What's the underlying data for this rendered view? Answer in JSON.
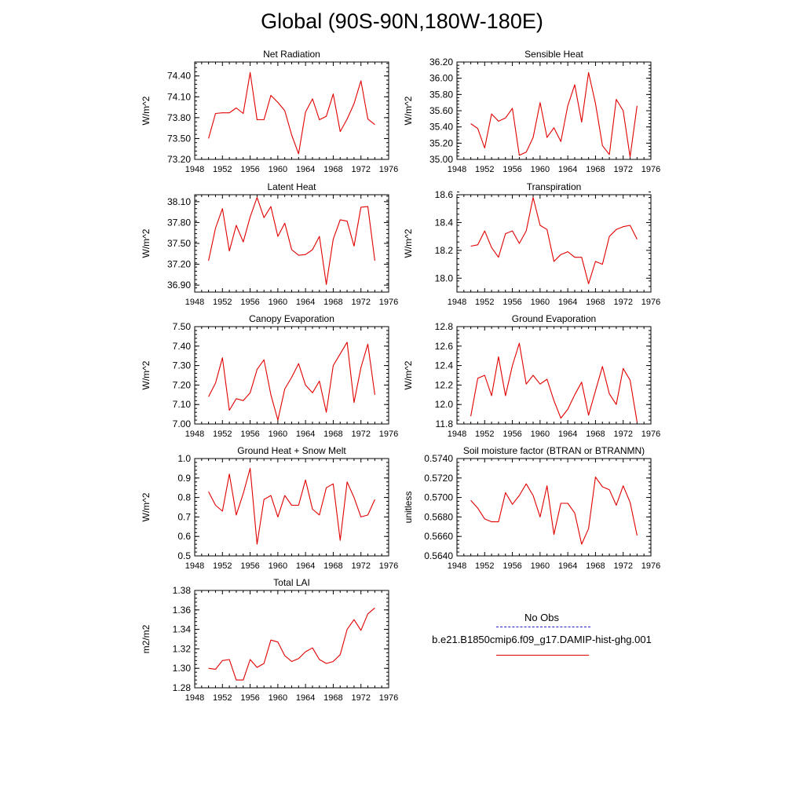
{
  "page_title": "Global (90S-90N,180W-180E)",
  "legend": {
    "items": [
      {
        "label": "No Obs",
        "color": "#1f1fcc",
        "dash": true
      },
      {
        "label": "b.e21.B1850cmip6.f09_g17.DAMIP-hist-ghg.001",
        "color": "#e00000",
        "dash": false
      }
    ]
  },
  "chart_data": [
    {
      "type": "line",
      "title": "Net Radiation",
      "ylabel": "W/m^2",
      "xlim": [
        1948,
        1976
      ],
      "ylim": [
        73.2,
        74.6
      ],
      "xticks": [
        1948,
        1952,
        1956,
        1960,
        1964,
        1968,
        1972,
        1976
      ],
      "yticks": [
        73.2,
        73.5,
        73.8,
        74.1,
        74.4
      ],
      "ytick_labels": [
        "73.20",
        "73.50",
        "73.80",
        "74.10",
        "74.40"
      ],
      "series": [
        {
          "color": "#e00000",
          "x": [
            1950,
            1951,
            1952,
            1953,
            1954,
            1955,
            1956,
            1957,
            1958,
            1959,
            1960,
            1961,
            1962,
            1963,
            1964,
            1965,
            1966,
            1967,
            1968,
            1969,
            1970,
            1971,
            1972,
            1973,
            1974
          ],
          "values": [
            73.5,
            73.86,
            73.87,
            73.87,
            73.94,
            73.86,
            74.45,
            73.77,
            73.77,
            74.12,
            74.02,
            73.9,
            73.55,
            73.28,
            73.88,
            74.07,
            73.77,
            73.82,
            74.14,
            73.6,
            73.78,
            74.0,
            74.33,
            73.78,
            73.7
          ]
        }
      ]
    },
    {
      "type": "line",
      "title": "Sensible Heat",
      "ylabel": "W/m^2",
      "xlim": [
        1948,
        1976
      ],
      "ylim": [
        35.0,
        36.2
      ],
      "xticks": [
        1948,
        1952,
        1956,
        1960,
        1964,
        1968,
        1972,
        1976
      ],
      "yticks": [
        35.0,
        35.2,
        35.4,
        35.6,
        35.8,
        36.0,
        36.2
      ],
      "ytick_labels": [
        "35.00",
        "35.20",
        "35.40",
        "35.60",
        "35.80",
        "36.00",
        "36.20"
      ],
      "series": [
        {
          "color": "#e00000",
          "x": [
            1950,
            1951,
            1952,
            1953,
            1954,
            1955,
            1956,
            1957,
            1958,
            1959,
            1960,
            1961,
            1962,
            1963,
            1964,
            1965,
            1966,
            1967,
            1968,
            1969,
            1970,
            1971,
            1972,
            1973,
            1974
          ],
          "values": [
            35.44,
            35.38,
            35.14,
            35.56,
            35.47,
            35.51,
            35.63,
            35.05,
            35.09,
            35.27,
            35.7,
            35.27,
            35.39,
            35.22,
            35.66,
            35.92,
            35.46,
            36.07,
            35.69,
            35.17,
            35.06,
            35.74,
            35.6,
            35.03,
            35.66
          ]
        }
      ]
    },
    {
      "type": "line",
      "title": "Latent Heat",
      "ylabel": "W/m^2",
      "xlim": [
        1948,
        1976
      ],
      "ylim": [
        36.8,
        38.2
      ],
      "xticks": [
        1948,
        1952,
        1956,
        1960,
        1964,
        1968,
        1972,
        1976
      ],
      "yticks": [
        36.9,
        37.2,
        37.5,
        37.8,
        38.1
      ],
      "ytick_labels": [
        "36.90",
        "37.20",
        "37.50",
        "37.80",
        "38.10"
      ],
      "series": [
        {
          "color": "#e00000",
          "x": [
            1950,
            1951,
            1952,
            1953,
            1954,
            1955,
            1956,
            1957,
            1958,
            1959,
            1960,
            1961,
            1962,
            1963,
            1964,
            1965,
            1966,
            1967,
            1968,
            1969,
            1970,
            1971,
            1972,
            1973,
            1974
          ],
          "values": [
            37.25,
            37.72,
            38.0,
            37.39,
            37.76,
            37.52,
            37.88,
            38.16,
            37.87,
            38.03,
            37.6,
            37.79,
            37.41,
            37.33,
            37.34,
            37.41,
            37.6,
            36.91,
            37.56,
            37.84,
            37.82,
            37.46,
            38.02,
            38.03,
            37.25
          ]
        }
      ]
    },
    {
      "type": "line",
      "title": "Transpiration",
      "ylabel": "W/m^2",
      "xlim": [
        1948,
        1976
      ],
      "ylim": [
        17.9,
        18.6
      ],
      "xticks": [
        1948,
        1952,
        1956,
        1960,
        1964,
        1968,
        1972,
        1976
      ],
      "yticks": [
        18.0,
        18.2,
        18.4,
        18.6
      ],
      "ytick_labels": [
        "18.0",
        "18.2",
        "18.4",
        "18.6"
      ],
      "series": [
        {
          "color": "#e00000",
          "x": [
            1950,
            1951,
            1952,
            1953,
            1954,
            1955,
            1956,
            1957,
            1958,
            1959,
            1960,
            1961,
            1962,
            1963,
            1964,
            1965,
            1966,
            1967,
            1968,
            1969,
            1970,
            1971,
            1972,
            1973,
            1974
          ],
          "values": [
            18.23,
            18.24,
            18.34,
            18.22,
            18.15,
            18.32,
            18.34,
            18.25,
            18.34,
            18.58,
            18.38,
            18.35,
            18.12,
            18.17,
            18.19,
            18.15,
            18.15,
            17.96,
            18.12,
            18.1,
            18.3,
            18.35,
            18.37,
            18.38,
            18.28
          ]
        }
      ]
    },
    {
      "type": "line",
      "title": "Canopy Evaporation",
      "ylabel": "W/m^2",
      "xlim": [
        1948,
        1976
      ],
      "ylim": [
        7.0,
        7.5
      ],
      "xticks": [
        1948,
        1952,
        1956,
        1960,
        1964,
        1968,
        1972,
        1976
      ],
      "yticks": [
        7.0,
        7.1,
        7.2,
        7.3,
        7.4,
        7.5
      ],
      "ytick_labels": [
        "7.00",
        "7.10",
        "7.20",
        "7.30",
        "7.40",
        "7.50"
      ],
      "series": [
        {
          "color": "#e00000",
          "x": [
            1950,
            1951,
            1952,
            1953,
            1954,
            1955,
            1956,
            1957,
            1958,
            1959,
            1960,
            1961,
            1962,
            1963,
            1964,
            1965,
            1966,
            1967,
            1968,
            1969,
            1970,
            1971,
            1972,
            1973,
            1974
          ],
          "values": [
            7.14,
            7.21,
            7.34,
            7.07,
            7.13,
            7.12,
            7.16,
            7.28,
            7.33,
            7.15,
            7.02,
            7.18,
            7.24,
            7.31,
            7.2,
            7.16,
            7.22,
            7.06,
            7.3,
            7.36,
            7.42,
            7.11,
            7.29,
            7.41,
            7.15
          ]
        }
      ]
    },
    {
      "type": "line",
      "title": "Ground Evaporation",
      "ylabel": "W/m^2",
      "xlim": [
        1948,
        1976
      ],
      "ylim": [
        11.8,
        12.8
      ],
      "xticks": [
        1948,
        1952,
        1956,
        1960,
        1964,
        1968,
        1972,
        1976
      ],
      "yticks": [
        11.8,
        12.0,
        12.2,
        12.4,
        12.6,
        12.8
      ],
      "ytick_labels": [
        "11.8",
        "12.0",
        "12.2",
        "12.4",
        "12.6",
        "12.8"
      ],
      "series": [
        {
          "color": "#e00000",
          "x": [
            1950,
            1951,
            1952,
            1953,
            1954,
            1955,
            1956,
            1957,
            1958,
            1959,
            1960,
            1961,
            1962,
            1963,
            1964,
            1965,
            1966,
            1967,
            1968,
            1969,
            1970,
            1971,
            1972,
            1973,
            1974
          ],
          "values": [
            11.88,
            12.27,
            12.3,
            12.09,
            12.49,
            12.09,
            12.4,
            12.63,
            12.21,
            12.3,
            12.21,
            12.26,
            12.04,
            11.86,
            11.95,
            12.1,
            12.23,
            11.89,
            12.14,
            12.39,
            12.11,
            12.0,
            12.37,
            12.25,
            11.82
          ]
        }
      ]
    },
    {
      "type": "line",
      "title": "Ground Heat + Snow Melt",
      "ylabel": "W/m^2",
      "xlim": [
        1948,
        1976
      ],
      "ylim": [
        0.5,
        1.0
      ],
      "xticks": [
        1948,
        1952,
        1956,
        1960,
        1964,
        1968,
        1972,
        1976
      ],
      "yticks": [
        0.5,
        0.6,
        0.7,
        0.8,
        0.9,
        1.0
      ],
      "ytick_labels": [
        "0.5",
        "0.6",
        "0.7",
        "0.8",
        "0.9",
        "1.0"
      ],
      "series": [
        {
          "color": "#e00000",
          "x": [
            1950,
            1951,
            1952,
            1953,
            1954,
            1955,
            1956,
            1957,
            1958,
            1959,
            1960,
            1961,
            1962,
            1963,
            1964,
            1965,
            1966,
            1967,
            1968,
            1969,
            1970,
            1971,
            1972,
            1973,
            1974
          ],
          "values": [
            0.83,
            0.76,
            0.73,
            0.92,
            0.71,
            0.82,
            0.95,
            0.56,
            0.79,
            0.81,
            0.7,
            0.81,
            0.76,
            0.76,
            0.89,
            0.74,
            0.71,
            0.85,
            0.87,
            0.58,
            0.88,
            0.8,
            0.7,
            0.71,
            0.79
          ]
        }
      ]
    },
    {
      "type": "line",
      "title": "Soil moisture factor (BTRAN or BTRANMN)",
      "ylabel": "unitless",
      "xlim": [
        1948,
        1976
      ],
      "ylim": [
        0.564,
        0.574
      ],
      "xticks": [
        1948,
        1952,
        1956,
        1960,
        1964,
        1968,
        1972,
        1976
      ],
      "yticks": [
        0.564,
        0.566,
        0.568,
        0.57,
        0.572,
        0.574
      ],
      "ytick_labels": [
        "0.5640",
        "0.5660",
        "0.5680",
        "0.5700",
        "0.5720",
        "0.5740"
      ],
      "series": [
        {
          "color": "#e00000",
          "x": [
            1950,
            1951,
            1952,
            1953,
            1954,
            1955,
            1956,
            1957,
            1958,
            1959,
            1960,
            1961,
            1962,
            1963,
            1964,
            1965,
            1966,
            1967,
            1968,
            1969,
            1970,
            1971,
            1972,
            1973,
            1974
          ],
          "values": [
            0.5697,
            0.5689,
            0.5678,
            0.5675,
            0.5675,
            0.5705,
            0.5693,
            0.5702,
            0.5714,
            0.5702,
            0.568,
            0.5712,
            0.5662,
            0.5694,
            0.5694,
            0.5684,
            0.5652,
            0.5668,
            0.5721,
            0.5711,
            0.5708,
            0.5692,
            0.5712,
            0.5695,
            0.5661
          ]
        }
      ]
    },
    {
      "type": "line",
      "title": "Total LAI",
      "ylabel": "m2/m2",
      "xlim": [
        1948,
        1976
      ],
      "ylim": [
        1.28,
        1.38
      ],
      "xticks": [
        1948,
        1952,
        1956,
        1960,
        1964,
        1968,
        1972,
        1976
      ],
      "yticks": [
        1.28,
        1.3,
        1.32,
        1.34,
        1.36,
        1.38
      ],
      "ytick_labels": [
        "1.28",
        "1.30",
        "1.32",
        "1.34",
        "1.36",
        "1.38"
      ],
      "series": [
        {
          "color": "#e00000",
          "x": [
            1950,
            1951,
            1952,
            1953,
            1954,
            1955,
            1956,
            1957,
            1958,
            1959,
            1960,
            1961,
            1962,
            1963,
            1964,
            1965,
            1966,
            1967,
            1968,
            1969,
            1970,
            1971,
            1972,
            1973,
            1974
          ],
          "values": [
            1.3,
            1.299,
            1.308,
            1.309,
            1.288,
            1.288,
            1.309,
            1.301,
            1.305,
            1.329,
            1.327,
            1.313,
            1.307,
            1.31,
            1.317,
            1.321,
            1.309,
            1.305,
            1.307,
            1.314,
            1.34,
            1.35,
            1.339,
            1.356,
            1.362
          ]
        }
      ]
    }
  ]
}
